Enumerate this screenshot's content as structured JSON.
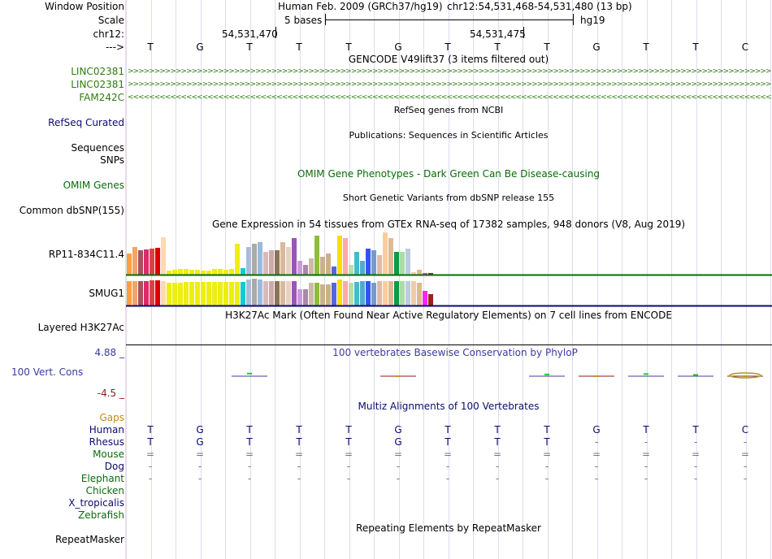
{
  "colors": {
    "gencode_green": "#2d7d0f",
    "refseq_navy": "#0b0b6f",
    "phylop_blue": "#3b3b9f",
    "gtex_divider_green": "#0a6b0a",
    "gtex_divider_navy": "#0b0b6f",
    "cons_min_red": "#8b1a1a",
    "gaps_orange": "#d0821a",
    "omim_green": "#0b6b0b"
  },
  "header": {
    "window_position_label": "Window Position",
    "assembly_text": "Human Feb. 2009 (GRCh37/hg19)",
    "position_text": "chr12:54,531,468-54,531,480 (13 bp)",
    "scale_label": "Scale",
    "scale_value": "5 bases",
    "scale_db": "hg19",
    "chrom_label": "chr12:",
    "coord_1": "54,531,470",
    "coord_2": "54,531,475",
    "strand_label": "--->",
    "sequence": [
      "T",
      "G",
      "T",
      "T",
      "T",
      "G",
      "T",
      "T",
      "T",
      "G",
      "T",
      "T",
      "C"
    ]
  },
  "gencode": {
    "title": "GENCODE V49lift37 (3 items filtered out)",
    "genes": [
      {
        "name": "LINC02381",
        "strand": ">"
      },
      {
        "name": "LINC02381",
        "strand": ">"
      },
      {
        "name": "FAM242C",
        "strand": "<"
      }
    ]
  },
  "refseq": {
    "title": "RefSeq genes from NCBI",
    "label": "RefSeq Curated"
  },
  "publications": {
    "title": "Publications: Sequences in Scientific Articles",
    "label_1": "Sequences",
    "label_2": "SNPs"
  },
  "omim": {
    "title": "OMIM Gene Phenotypes - Dark Green Can Be Disease-causing",
    "label": "OMIM Genes"
  },
  "dbsnp": {
    "title": "Short Genetic Variants from dbSNP release 155",
    "label": "Common dbSNP(155)"
  },
  "gtex": {
    "title": "Gene Expression in 54 tissues from GTEx RNA-seq of 17382 samples, 948 donors (V8, Aug 2019)",
    "tissue_colors": [
      "#ff9f3f",
      "#f3a36b",
      "#a8515d",
      "#db2a6d",
      "#dd4040",
      "#dd0000",
      "#ffd9b3",
      "#eeee11",
      "#eeee11",
      "#eeee11",
      "#eeee11",
      "#eeee11",
      "#eeee11",
      "#eeee11",
      "#eeee11",
      "#eeee11",
      "#eeee11",
      "#eeee11",
      "#eeee11",
      "#eeee11",
      "#11cccc",
      "#aabbdd",
      "#aaaaaa",
      "#99bbdd",
      "#ddb8b8",
      "#ccaaaa",
      "#8b7355",
      "#d8b99b",
      "#ead0c4",
      "#9955bb",
      "#cc99dd",
      "#aa88aa",
      "#ccbbaa",
      "#8fbc3c",
      "#ccb08c",
      "#ccb08c",
      "#5566dd",
      "#ffdd00",
      "#ffaaaa",
      "#bbddaa",
      "#44bbcc",
      "#55aacc",
      "#3355ee",
      "#7799cc",
      "#ddbbaa",
      "#ffcc99",
      "#ddbb99",
      "#119944",
      "#aaddaa",
      "#bbccdd",
      "#eeccaa",
      "#ddbb88",
      "#ff22ff",
      "#992222"
    ],
    "genes": [
      {
        "name": "RP11-834C11.4",
        "values": [
          26,
          34,
          30,
          31,
          32,
          33,
          46,
          5,
          6,
          7,
          7,
          6,
          6,
          5,
          5,
          7,
          7,
          6,
          7,
          38,
          8,
          34,
          38,
          40,
          28,
          30,
          30,
          40,
          34,
          45,
          17,
          12,
          20,
          48,
          22,
          26,
          10,
          48,
          45,
          12,
          28,
          17,
          32,
          30,
          24,
          52,
          45,
          28,
          28,
          32,
          3,
          6,
          2,
          2
        ]
      },
      {
        "name": "SMUG1",
        "values": [
          30,
          30,
          30,
          30,
          31,
          31,
          30,
          28,
          28,
          28,
          29,
          29,
          29,
          29,
          29,
          29,
          29,
          29,
          29,
          29,
          29,
          32,
          33,
          32,
          30,
          30,
          30,
          30,
          30,
          30,
          20,
          20,
          28,
          28,
          26,
          26,
          28,
          32,
          30,
          28,
          29,
          30,
          30,
          28,
          30,
          30,
          30,
          30,
          30,
          30,
          30,
          28,
          18,
          14
        ]
      }
    ]
  },
  "h3k27ac": {
    "title": "H3K27Ac Mark (Often Found Near Active Regulatory Elements) on 7 cell lines from ENCODE",
    "label": "Layered H3K27Ac"
  },
  "phylop": {
    "title": "100 vertebrates Basewise Conservation by PhyloP",
    "label": "100 Vert. Cons",
    "max_label": "4.88 _",
    "min_label": "-4.5 _",
    "range": [
      -4.5,
      4.88
    ],
    "scores": [
      0,
      0,
      0.6,
      0,
      0,
      -0.1,
      0,
      0,
      0.4,
      -0.2,
      0.5,
      0.3,
      -0.4
    ]
  },
  "multiz": {
    "title": "Multiz Alignments of 100 Vertebrates",
    "gaps_label": "Gaps",
    "species": [
      {
        "name": "Human",
        "seq": [
          "T",
          "G",
          "T",
          "T",
          "T",
          "G",
          "T",
          "T",
          "T",
          "G",
          "T",
          "T",
          "C"
        ]
      },
      {
        "name": "Rhesus",
        "seq": [
          "T",
          "G",
          "T",
          "T",
          "T",
          "G",
          "T",
          "T",
          "T",
          "-",
          "-",
          "-",
          "-"
        ]
      },
      {
        "name": "Mouse",
        "seq": [
          "=",
          "=",
          "=",
          "=",
          "=",
          "=",
          "=",
          "=",
          "=",
          "=",
          "=",
          "=",
          "="
        ]
      },
      {
        "name": "Dog",
        "seq": [
          "-",
          "-",
          "-",
          "-",
          "-",
          "-",
          "-",
          "-",
          "-",
          "-",
          "-",
          "-",
          "-"
        ]
      },
      {
        "name": "Elephant",
        "seq": [
          "-",
          "-",
          "-",
          "-",
          "-",
          "-",
          "-",
          "-",
          "-",
          "-",
          "-",
          "-",
          "-"
        ]
      },
      {
        "name": "Chicken",
        "seq": []
      },
      {
        "name": "X_tropicalis",
        "seq": []
      },
      {
        "name": "Zebrafish",
        "seq": []
      }
    ]
  },
  "repeatmasker": {
    "title": "Repeating Elements by RepeatMasker",
    "label": "RepeatMasker"
  }
}
